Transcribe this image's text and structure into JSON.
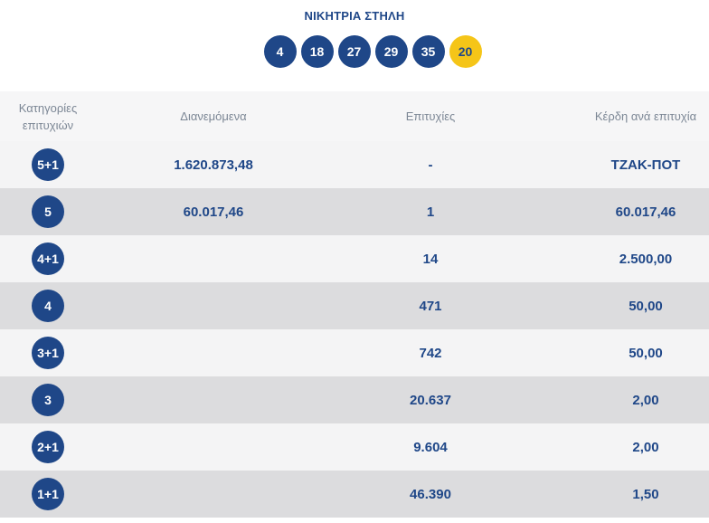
{
  "winning": {
    "title": "ΝΙΚΗΤΡΙΑ ΣΤΗΛΗ",
    "numbers": [
      "4",
      "18",
      "27",
      "29",
      "35"
    ],
    "joker": "20"
  },
  "table": {
    "headers": {
      "category_line1": "Κατηγορίες",
      "category_line2": "επιτυχιών",
      "distributed": "Διανεμόμενα",
      "winners": "Επιτυχίες",
      "prize": "Κέρδη ανά επιτυχία"
    },
    "rows": [
      {
        "category": "5+1",
        "distributed": "1.620.873,48",
        "winners": "-",
        "prize": "ΤΖΑΚ-ΠΟΤ"
      },
      {
        "category": "5",
        "distributed": "60.017,46",
        "winners": "1",
        "prize": "60.017,46"
      },
      {
        "category": "4+1",
        "distributed": "",
        "winners": "14",
        "prize": "2.500,00"
      },
      {
        "category": "4",
        "distributed": "",
        "winners": "471",
        "prize": "50,00"
      },
      {
        "category": "3+1",
        "distributed": "",
        "winners": "742",
        "prize": "50,00"
      },
      {
        "category": "3",
        "distributed": "",
        "winners": "20.637",
        "prize": "2,00"
      },
      {
        "category": "2+1",
        "distributed": "",
        "winners": "9.604",
        "prize": "2,00"
      },
      {
        "category": "1+1",
        "distributed": "",
        "winners": "46.390",
        "prize": "1,50"
      }
    ]
  },
  "colors": {
    "primary": "#1f4788",
    "joker": "#f5c518",
    "row_light": "#f4f4f5",
    "row_dark": "#dcdcde",
    "header_text": "#7c8795"
  }
}
